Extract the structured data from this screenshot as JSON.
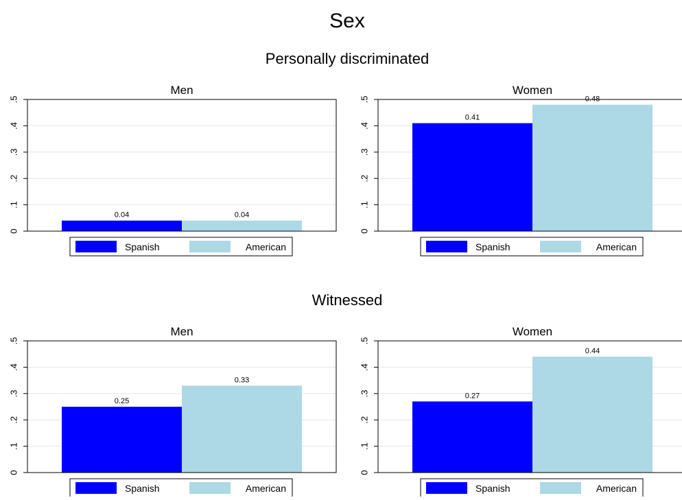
{
  "title": "Sex",
  "colors": {
    "spanish": "#0000ff",
    "american": "#add8e6",
    "grid": "#e6e6e6"
  },
  "sections": [
    {
      "title": "Personally discriminated"
    },
    {
      "title": "Witnessed"
    }
  ],
  "chart_data": [
    {
      "type": "bar",
      "section": "Personally discriminated",
      "title": "Men",
      "categories": [
        "Spanish",
        "American"
      ],
      "values": [
        0.04,
        0.04
      ],
      "value_labels": [
        "0.04",
        "0.04"
      ],
      "ylim": [
        0,
        0.5
      ],
      "yticks": [
        0,
        0.1,
        0.2,
        0.3,
        0.4,
        0.5
      ],
      "ytick_labels": [
        "0",
        ".1",
        ".2",
        ".3",
        ".4",
        ".5"
      ],
      "grid": true,
      "legend": [
        "Spanish",
        "American"
      ],
      "legend_position": "bottom"
    },
    {
      "type": "bar",
      "section": "Personally discriminated",
      "title": "Women",
      "categories": [
        "Spanish",
        "American"
      ],
      "values": [
        0.41,
        0.48
      ],
      "value_labels": [
        "0.41",
        "0.48"
      ],
      "ylim": [
        0,
        0.5
      ],
      "yticks": [
        0,
        0.1,
        0.2,
        0.3,
        0.4,
        0.5
      ],
      "ytick_labels": [
        "0",
        ".1",
        ".2",
        ".3",
        ".4",
        ".5"
      ],
      "grid": true,
      "legend": [
        "Spanish",
        "American"
      ],
      "legend_position": "bottom"
    },
    {
      "type": "bar",
      "section": "Witnessed",
      "title": "Men",
      "categories": [
        "Spanish",
        "American"
      ],
      "values": [
        0.25,
        0.33
      ],
      "value_labels": [
        "0.25",
        "0.33"
      ],
      "ylim": [
        0,
        0.5
      ],
      "yticks": [
        0,
        0.1,
        0.2,
        0.3,
        0.4,
        0.5
      ],
      "ytick_labels": [
        "0",
        ".1",
        ".2",
        ".3",
        ".4",
        ".5"
      ],
      "grid": true,
      "legend": [
        "Spanish",
        "American"
      ],
      "legend_position": "bottom"
    },
    {
      "type": "bar",
      "section": "Witnessed",
      "title": "Women",
      "categories": [
        "Spanish",
        "American"
      ],
      "values": [
        0.27,
        0.44
      ],
      "value_labels": [
        "0.27",
        "0.44"
      ],
      "ylim": [
        0,
        0.5
      ],
      "yticks": [
        0,
        0.1,
        0.2,
        0.3,
        0.4,
        0.5
      ],
      "ytick_labels": [
        "0",
        ".1",
        ".2",
        ".3",
        ".4",
        ".5"
      ],
      "grid": true,
      "legend": [
        "Spanish",
        "American"
      ],
      "legend_position": "bottom"
    }
  ]
}
